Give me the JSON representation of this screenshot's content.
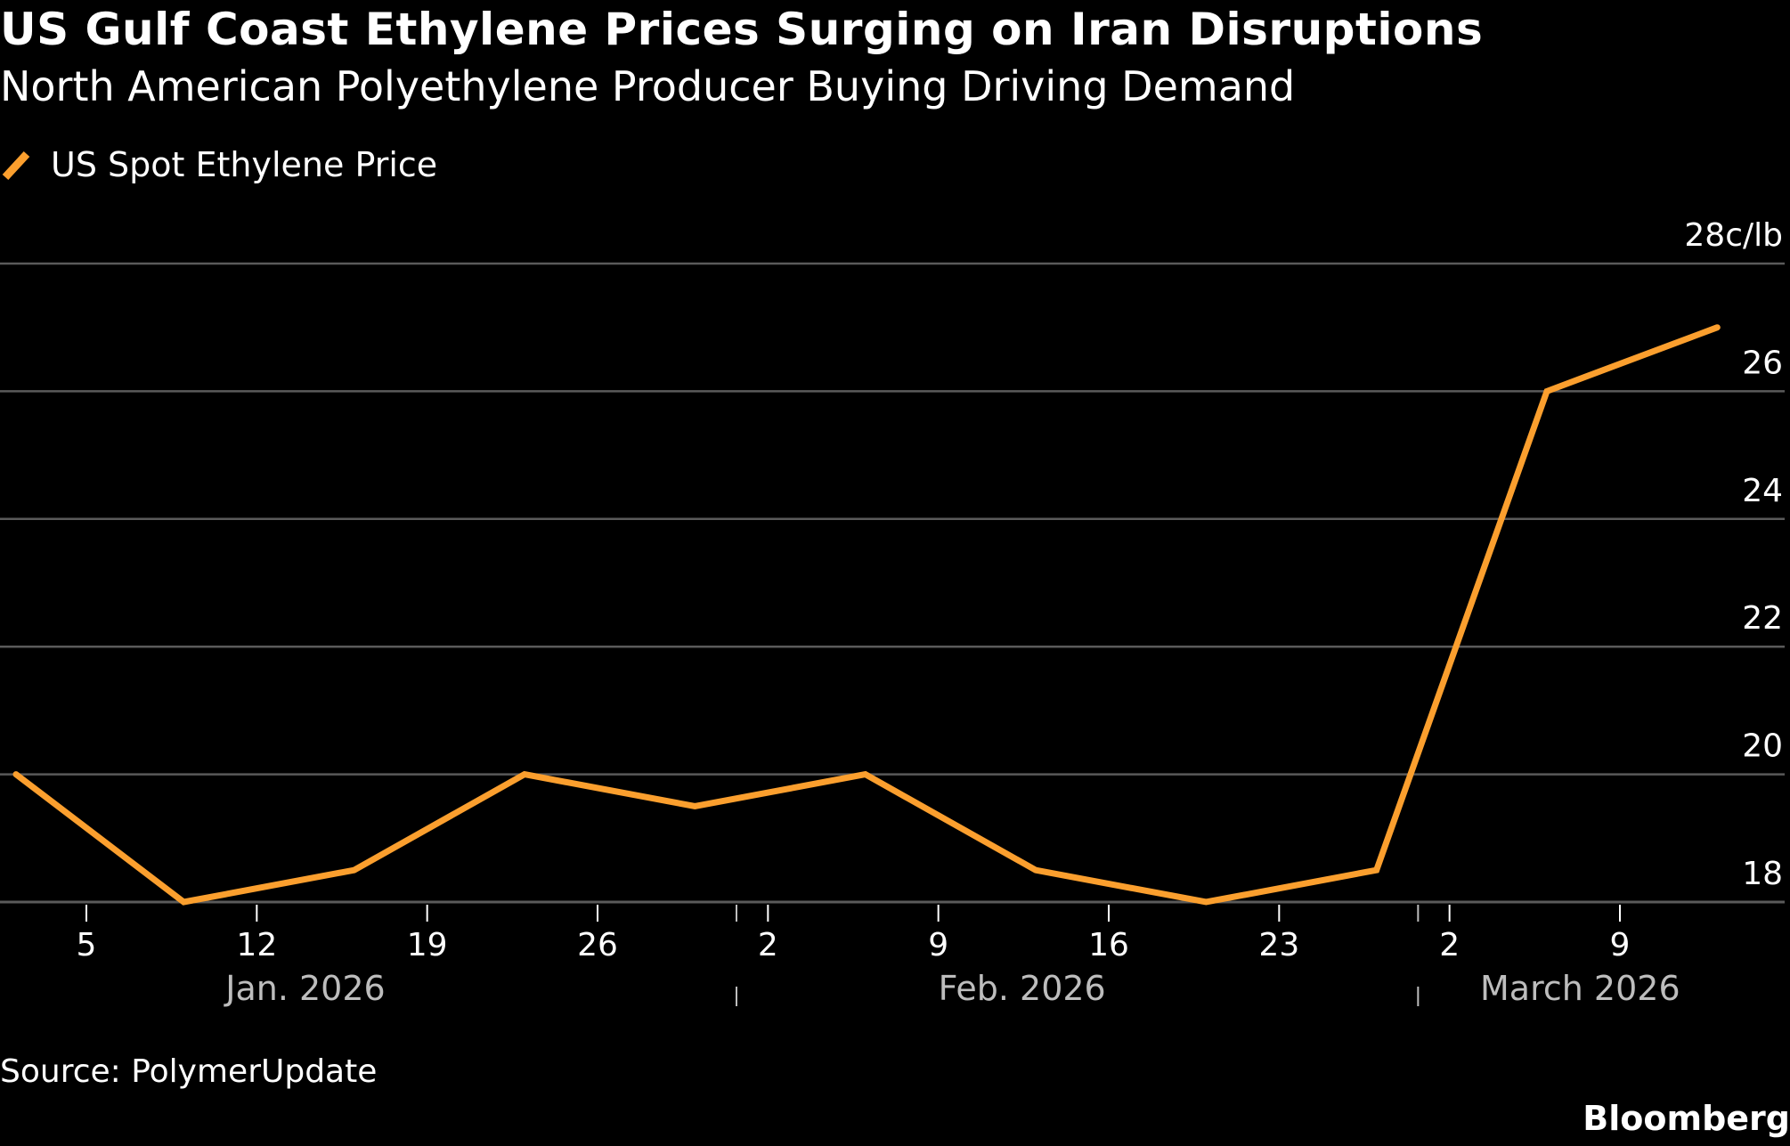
{
  "header": {
    "title": "US Gulf Coast Ethylene Prices Surging on Iran Disruptions",
    "subtitle": "North American Polyethylene Producer Buying Driving Demand"
  },
  "footer": {
    "source": "Source: PolymerUpdate",
    "brand": "Bloomberg"
  },
  "colors": {
    "background": "#000000",
    "series": "#fb9f2e",
    "grid": "#5a5a5a",
    "month_label": "#bdbdbd"
  },
  "chart_data": {
    "type": "line",
    "title": "US Gulf Coast Ethylene Prices Surging on Iran Disruptions",
    "subtitle": "North American Polyethylene Producer Buying Driving Demand",
    "xlabel": "",
    "ylabel": "c/lb",
    "unit_label": "28c/lb",
    "ylim": [
      18,
      28
    ],
    "yticks": [
      18,
      20,
      22,
      24,
      26,
      28
    ],
    "ytick_labels": [
      "18",
      "20",
      "22",
      "24",
      "26",
      "28c/lb"
    ],
    "grid": true,
    "y_axis_position": "right",
    "legend_position": "top-left",
    "xlim": [
      "2026-01-02",
      "2026-03-16"
    ],
    "xticks": [
      {
        "date": "2026-01-05",
        "label": "5"
      },
      {
        "date": "2026-01-12",
        "label": "12"
      },
      {
        "date": "2026-01-19",
        "label": "19"
      },
      {
        "date": "2026-01-26",
        "label": "26"
      },
      {
        "date": "2026-02-02",
        "label": "2"
      },
      {
        "date": "2026-02-09",
        "label": "9"
      },
      {
        "date": "2026-02-16",
        "label": "16"
      },
      {
        "date": "2026-02-23",
        "label": "23"
      },
      {
        "date": "2026-03-02",
        "label": "2"
      },
      {
        "date": "2026-03-09",
        "label": "9"
      }
    ],
    "month_labels": [
      {
        "label": "Jan. 2026",
        "start": "2026-01-02",
        "end": "2026-02-01"
      },
      {
        "label": "Feb. 2026",
        "start": "2026-02-01",
        "end": "2026-03-01"
      },
      {
        "label": "March 2026",
        "start": "2026-03-01",
        "end": "2026-03-16"
      }
    ],
    "month_separators": [
      "2026-02-01",
      "2026-03-01"
    ],
    "series": [
      {
        "name": "US Spot Ethylene Price",
        "color": "#fb9f2e",
        "x": [
          "2026-01-02",
          "2026-01-09",
          "2026-01-16",
          "2026-01-23",
          "2026-01-30",
          "2026-02-06",
          "2026-02-13",
          "2026-02-20",
          "2026-02-27",
          "2026-03-06",
          "2026-03-13"
        ],
        "values": [
          20.0,
          18.0,
          18.5,
          20.0,
          19.5,
          20.0,
          18.5,
          18.0,
          18.5,
          26.0,
          27.0
        ]
      }
    ]
  }
}
